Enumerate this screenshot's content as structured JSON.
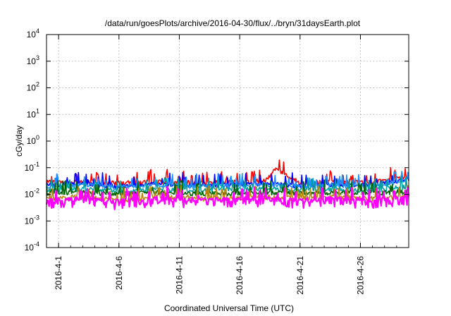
{
  "chart_data": {
    "type": "line",
    "title": "/data/run/goesPlots/archive/2016-04-30/flux/../bryn/31daysEarth.plot",
    "xlabel": "Coordinated Universal Time (UTC)",
    "ylabel": "cGy/day",
    "yscale": "log",
    "ylim": [
      0.0001,
      10000
    ],
    "y_ticks": [
      {
        "value": 0.0001,
        "base": "10",
        "exp": "-4"
      },
      {
        "value": 0.001,
        "base": "10",
        "exp": "-3"
      },
      {
        "value": 0.01,
        "base": "10",
        "exp": "-2"
      },
      {
        "value": 0.1,
        "base": "10",
        "exp": "-1"
      },
      {
        "value": 1,
        "base": "10",
        "exp": "0"
      },
      {
        "value": 10,
        "base": "10",
        "exp": "1"
      },
      {
        "value": 100,
        "base": "10",
        "exp": "2"
      },
      {
        "value": 1000,
        "base": "10",
        "exp": "3"
      },
      {
        "value": 10000,
        "base": "10",
        "exp": "4"
      }
    ],
    "xlim": [
      "2016-03-31",
      "2016-04-30"
    ],
    "x_ticks": [
      "2016-4-1",
      "2016-4-6",
      "2016-4-11",
      "2016-4-16",
      "2016-4-21",
      "2016-4-26"
    ],
    "grid": true,
    "series": [
      {
        "color": "#ff0000",
        "x": [
          "2016-03-31",
          "2016-04-03",
          "2016-04-06",
          "2016-04-09",
          "2016-04-12",
          "2016-04-15",
          "2016-04-18",
          "2016-04-19",
          "2016-04-21",
          "2016-04-24",
          "2016-04-27",
          "2016-04-30"
        ],
        "values": [
          0.028,
          0.03,
          0.026,
          0.03,
          0.027,
          0.029,
          0.032,
          0.09,
          0.027,
          0.03,
          0.028,
          0.045
        ]
      },
      {
        "color": "#0000ff",
        "x": [
          "2016-03-31",
          "2016-04-03",
          "2016-04-06",
          "2016-04-09",
          "2016-04-12",
          "2016-04-15",
          "2016-04-18",
          "2016-04-21",
          "2016-04-24",
          "2016-04-27",
          "2016-04-30"
        ],
        "values": [
          0.022,
          0.025,
          0.02,
          0.024,
          0.021,
          0.023,
          0.026,
          0.021,
          0.024,
          0.022,
          0.04
        ]
      },
      {
        "color": "#1e90ff",
        "x": [
          "2016-03-31",
          "2016-04-03",
          "2016-04-06",
          "2016-04-09",
          "2016-04-12",
          "2016-04-15",
          "2016-04-18",
          "2016-04-21",
          "2016-04-24",
          "2016-04-27",
          "2016-04-30"
        ],
        "values": [
          0.02,
          0.023,
          0.019,
          0.022,
          0.02,
          0.021,
          0.024,
          0.02,
          0.022,
          0.02,
          0.035
        ]
      },
      {
        "color": "#00a0a0",
        "x": [
          "2016-03-31",
          "2016-04-03",
          "2016-04-06",
          "2016-04-09",
          "2016-04-12",
          "2016-04-15",
          "2016-04-18",
          "2016-04-21",
          "2016-04-24",
          "2016-04-27",
          "2016-04-30"
        ],
        "values": [
          0.014,
          0.016,
          0.013,
          0.015,
          0.014,
          0.015,
          0.016,
          0.014,
          0.015,
          0.014,
          0.02
        ]
      },
      {
        "color": "#006400",
        "x": [
          "2016-03-31",
          "2016-04-03",
          "2016-04-06",
          "2016-04-09",
          "2016-04-12",
          "2016-04-15",
          "2016-04-18",
          "2016-04-21",
          "2016-04-24",
          "2016-04-27",
          "2016-04-30"
        ],
        "values": [
          0.011,
          0.012,
          0.01,
          0.012,
          0.011,
          0.011,
          0.012,
          0.011,
          0.012,
          0.011,
          0.013
        ]
      },
      {
        "color": "#b8860b",
        "x": [
          "2016-03-31",
          "2016-04-03",
          "2016-04-06",
          "2016-04-09",
          "2016-04-12",
          "2016-04-15",
          "2016-04-18",
          "2016-04-21",
          "2016-04-24",
          "2016-04-27",
          "2016-04-30"
        ],
        "values": [
          0.007,
          0.008,
          0.006,
          0.008,
          0.007,
          0.007,
          0.008,
          0.007,
          0.008,
          0.007,
          0.008
        ]
      },
      {
        "color": "#ff00ff",
        "x": [
          "2016-03-31",
          "2016-04-03",
          "2016-04-06",
          "2016-04-09",
          "2016-04-12",
          "2016-04-15",
          "2016-04-18",
          "2016-04-21",
          "2016-04-24",
          "2016-04-27",
          "2016-04-30"
        ],
        "values": [
          0.006,
          0.007,
          0.0055,
          0.007,
          0.006,
          0.0065,
          0.007,
          0.006,
          0.007,
          0.006,
          0.008
        ]
      }
    ]
  }
}
